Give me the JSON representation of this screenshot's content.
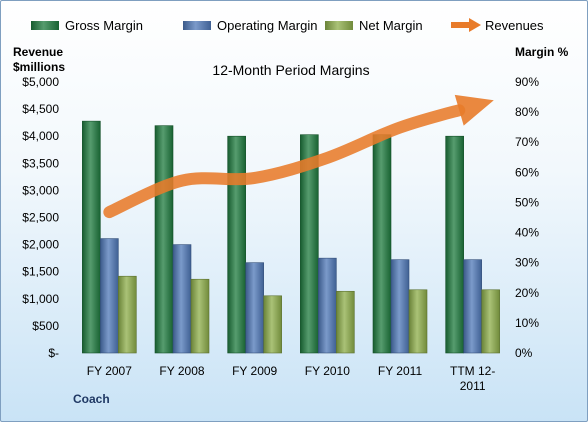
{
  "chart_data": {
    "type": "bar",
    "title": "12-Month Period Margins",
    "footer_label": "Coach",
    "left_axis": {
      "title_line1": "Revenue",
      "title_line2": "$millions",
      "ticks": [
        "$-",
        "$500",
        "$1,000",
        "$1,500",
        "$2,000",
        "$2,500",
        "$3,000",
        "$3,500",
        "$4,000",
        "$4,500",
        "$5,000"
      ],
      "ylim": [
        0,
        5000
      ]
    },
    "right_axis": {
      "title": "Margin %",
      "ticks": [
        "0%",
        "10%",
        "20%",
        "30%",
        "40%",
        "50%",
        "60%",
        "70%",
        "80%",
        "90%"
      ],
      "ylim": [
        0,
        90
      ]
    },
    "categories": [
      [
        "FY 2007"
      ],
      [
        "FY 2008"
      ],
      [
        "FY 2009"
      ],
      [
        "FY 2010"
      ],
      [
        "FY 2011"
      ],
      [
        "TTM 12-",
        "2011"
      ]
    ],
    "series": [
      {
        "name": "Gross Margin",
        "type": "bar",
        "axis": "right",
        "color": "#1e7b3e",
        "values": [
          77,
          75.5,
          72,
          72.5,
          72.5,
          72
        ]
      },
      {
        "name": "Operating Margin",
        "type": "bar",
        "axis": "right",
        "color": "#4f78b8",
        "values": [
          38,
          36,
          30,
          31.5,
          31,
          31
        ]
      },
      {
        "name": "Net Margin",
        "type": "bar",
        "axis": "right",
        "color": "#8dae4a",
        "values": [
          25.5,
          24.5,
          19,
          20.5,
          21,
          21
        ]
      },
      {
        "name": "Revenues",
        "type": "arrow",
        "axis": "left",
        "color": "#e87b2a",
        "values": [
          2600,
          3180,
          3230,
          3600,
          4160,
          4550
        ]
      }
    ],
    "legend_position": "top",
    "grid": false
  }
}
